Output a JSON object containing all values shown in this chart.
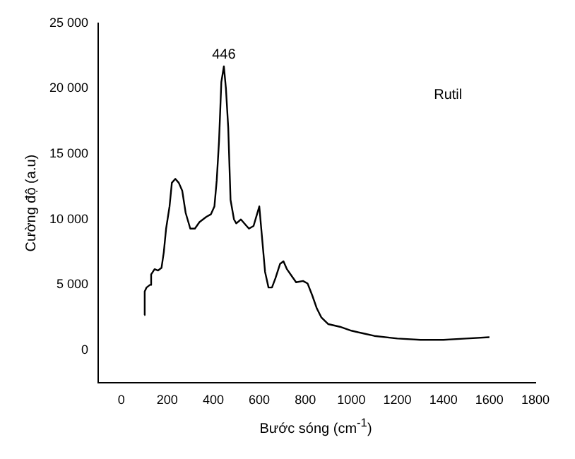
{
  "chart_data": {
    "type": "line",
    "xlabel": "Bước sóng (cm$^{-1}$)",
    "ylabel": "Cường độ (a.u)",
    "annotations": [
      {
        "text": "446",
        "x": 446,
        "y": 21700
      },
      "Rutil"
    ],
    "series": [
      {
        "color": "#000000",
        "x": [
          100,
          102,
          110,
          125,
          130,
          145,
          160,
          175,
          185,
          195,
          210,
          220,
          235,
          250,
          265,
          280,
          300,
          320,
          340,
          370,
          390,
          405,
          415,
          425,
          435,
          446,
          455,
          465,
          475,
          490,
          500,
          520,
          540,
          555,
          575,
          590,
          600,
          610,
          625,
          640,
          655,
          670,
          690,
          705,
          720,
          740,
          760,
          790,
          810,
          830,
          850,
          870,
          900,
          950,
          1000,
          1050,
          1100,
          1200,
          1300,
          1400,
          1500,
          1600
        ],
        "values": [
          2700,
          4500,
          4800,
          5000,
          5800,
          6200,
          6100,
          6300,
          7500,
          9300,
          11000,
          12800,
          13100,
          12800,
          12200,
          10500,
          9300,
          9300,
          9800,
          10200,
          10400,
          11000,
          13000,
          16000,
          20500,
          21700,
          20000,
          17000,
          11500,
          10000,
          9700,
          10000,
          9600,
          9300,
          9500,
          10400,
          11000,
          9000,
          6000,
          4800,
          4800,
          5500,
          6600,
          6800,
          6200,
          5700,
          5200,
          5300,
          5100,
          4200,
          3200,
          2500,
          2000,
          1800,
          1500,
          1300,
          1100,
          900,
          800,
          800,
          900,
          1000
        ]
      }
    ],
    "xlim": [
      -100,
      1800
    ],
    "xticks": [
      0,
      200,
      400,
      600,
      800,
      1000,
      1200,
      1400,
      1600,
      1800
    ],
    "ylim": [
      -2500,
      25000
    ],
    "yticks": [
      0,
      {
        "value": 5000,
        "label": "5 000"
      },
      {
        "value": 10000,
        "label": "10 000"
      },
      {
        "value": 15000,
        "label": "15 000"
      },
      {
        "value": 20000,
        "label": "20 000"
      },
      {
        "value": 25000,
        "label": "25 000"
      }
    ],
    "grid": false,
    "legend": false,
    "marker": "none",
    "line_style": "solid"
  }
}
